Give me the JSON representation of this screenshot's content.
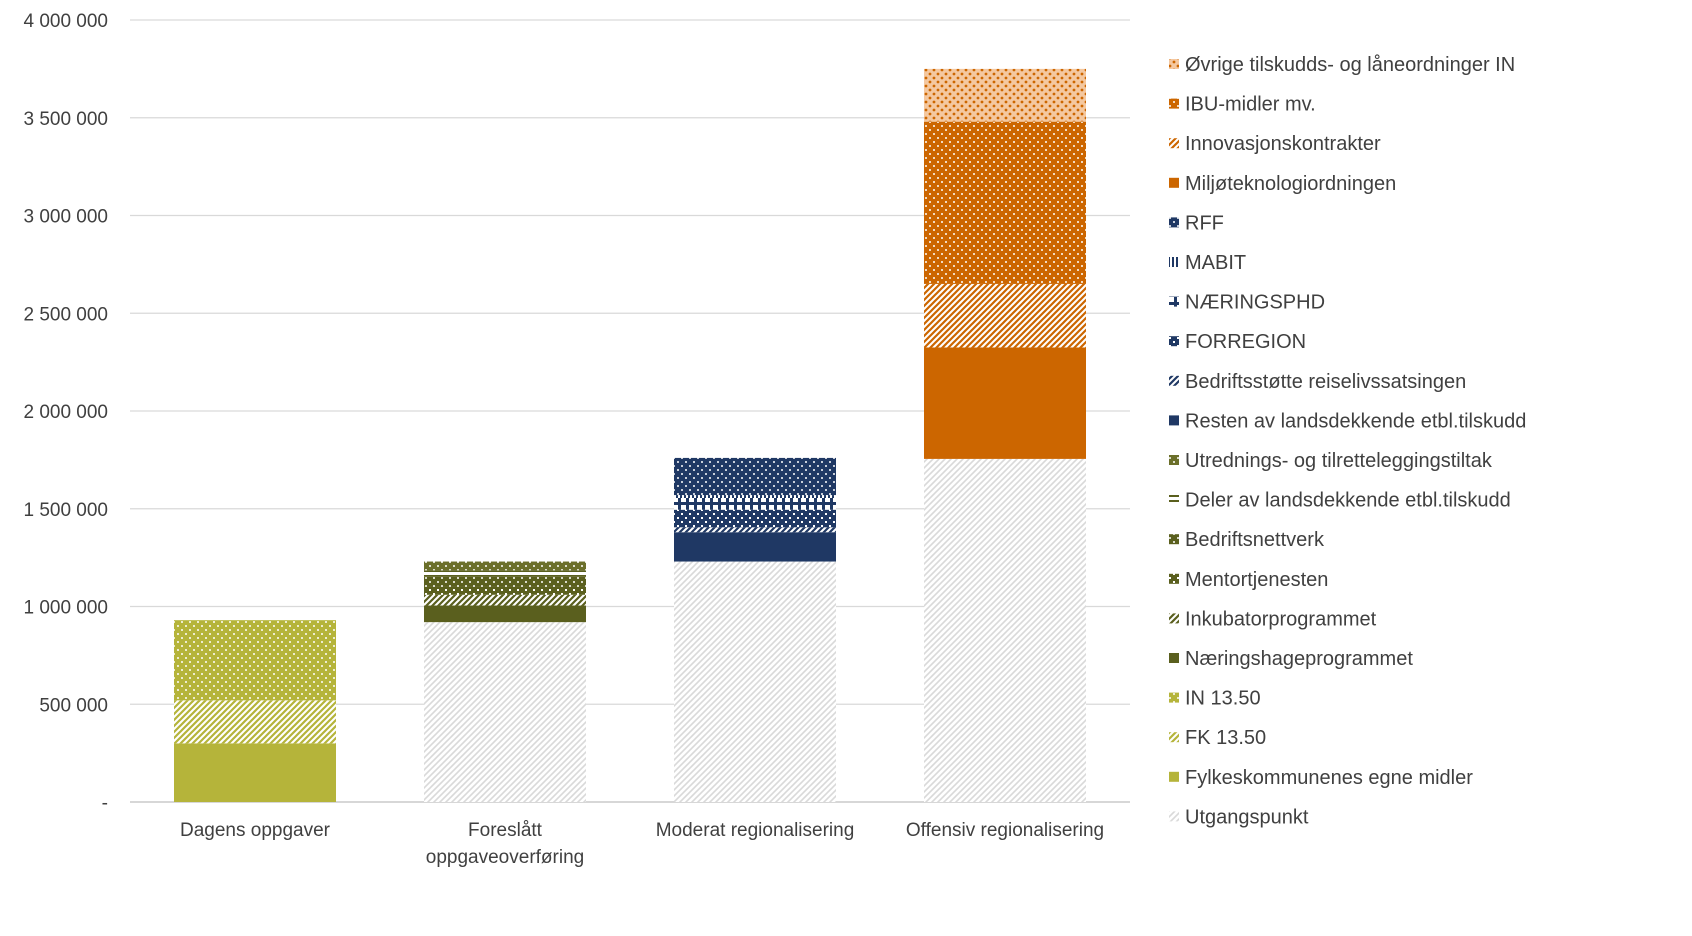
{
  "chart_data": {
    "type": "bar",
    "stacked": true,
    "grid": true,
    "legend_position": "right",
    "ylim": [
      0,
      4000000
    ],
    "yticks": [
      {
        "value": 0,
        "label": "-"
      },
      {
        "value": 500000,
        "label": "500 000"
      },
      {
        "value": 1000000,
        "label": "1 000 000"
      },
      {
        "value": 1500000,
        "label": "1 500 000"
      },
      {
        "value": 2000000,
        "label": "2 000 000"
      },
      {
        "value": 2500000,
        "label": "2 500 000"
      },
      {
        "value": 3000000,
        "label": "3 000 000"
      },
      {
        "value": 3500000,
        "label": "3 500 000"
      },
      {
        "value": 4000000,
        "label": "4 000 000"
      }
    ],
    "categories": [
      [
        "Dagens oppgaver"
      ],
      [
        "Foreslått",
        "oppgaveoverføring"
      ],
      [
        "Moderat regionalisering"
      ],
      [
        "Offensiv regionalisering"
      ]
    ],
    "series": [
      {
        "name": "Utgangspunkt",
        "color": "#d9d9d9",
        "pattern": "diag-light",
        "values": [
          0,
          920000,
          1230000,
          1755000
        ]
      },
      {
        "name": "Fylkeskommunenes egne midler",
        "color": "#b5b43a",
        "pattern": "solid",
        "values": [
          300000,
          0,
          0,
          0
        ]
      },
      {
        "name": "FK 13.50",
        "color": "#b5b43a",
        "pattern": "diag",
        "values": [
          220000,
          0,
          0,
          0
        ]
      },
      {
        "name": "IN 13.50",
        "color": "#b5b43a",
        "pattern": "dots",
        "values": [
          410000,
          0,
          0,
          0
        ]
      },
      {
        "name": "Næringshageprogrammet",
        "color": "#5a5f1e",
        "pattern": "solid",
        "values": [
          0,
          85000,
          0,
          0
        ]
      },
      {
        "name": "Inkubatorprogrammet",
        "color": "#5a5f1e",
        "pattern": "diag",
        "values": [
          0,
          55000,
          0,
          0
        ]
      },
      {
        "name": "Mentortjenesten",
        "color": "#5a5f1e",
        "pattern": "check",
        "values": [
          0,
          40000,
          0,
          0
        ]
      },
      {
        "name": "Bedriftsnettverk",
        "color": "#5a5f1e",
        "pattern": "dots",
        "values": [
          0,
          55000,
          0,
          0
        ]
      },
      {
        "name": "Deler av landsdekkende etbl.tilskudd",
        "color": "#5a5f1e",
        "pattern": "hlines",
        "values": [
          0,
          30000,
          0,
          0
        ]
      },
      {
        "name": "Utrednings- og tilretteleggingstiltak",
        "color": "#6b6f2a",
        "pattern": "dots",
        "values": [
          0,
          45000,
          0,
          0
        ]
      },
      {
        "name": "Resten av landsdekkende etbl.tilskudd",
        "color": "#1f3864",
        "pattern": "solid",
        "values": [
          0,
          0,
          150000,
          0
        ]
      },
      {
        "name": "Bedriftsstøtte reiselivssatsingen",
        "color": "#1f3864",
        "pattern": "diag",
        "values": [
          0,
          0,
          25000,
          0
        ]
      },
      {
        "name": "FORREGION",
        "color": "#1f3864",
        "pattern": "check",
        "values": [
          0,
          0,
          90000,
          0
        ]
      },
      {
        "name": "NÆRINGSPHD",
        "color": "#1f3864",
        "pattern": "grid",
        "values": [
          0,
          0,
          60000,
          0
        ]
      },
      {
        "name": "MABIT",
        "color": "#1f3864",
        "pattern": "vlines",
        "values": [
          0,
          0,
          15000,
          0
        ]
      },
      {
        "name": "RFF",
        "color": "#1f3864",
        "pattern": "dots",
        "values": [
          0,
          0,
          190000,
          0
        ]
      },
      {
        "name": "Miljøteknologiordningen",
        "color": "#cc6600",
        "pattern": "solid",
        "values": [
          0,
          0,
          0,
          570000
        ]
      },
      {
        "name": "Innovasjonskontrakter",
        "color": "#cc6600",
        "pattern": "diag",
        "values": [
          0,
          0,
          0,
          325000
        ]
      },
      {
        "name": "IBU-midler mv.",
        "color": "#cc6600",
        "pattern": "dots",
        "values": [
          0,
          0,
          0,
          830000
        ]
      },
      {
        "name": "Øvrige tilskudds- og låneordninger IN",
        "color": "#cc6600",
        "pattern": "dots-light",
        "values": [
          0,
          0,
          0,
          270000
        ]
      }
    ]
  }
}
